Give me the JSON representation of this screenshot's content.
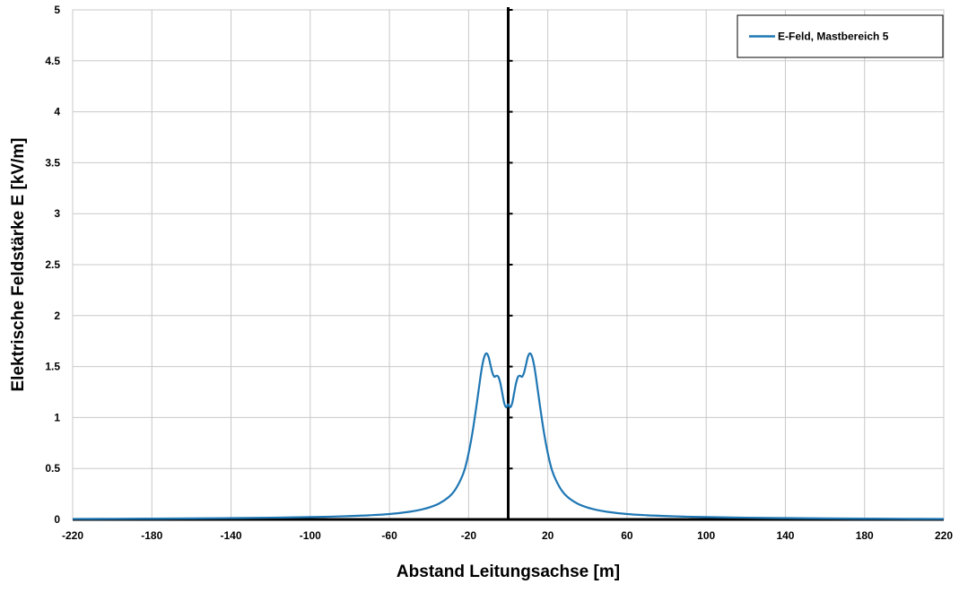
{
  "chart_data": {
    "type": "line",
    "title": "",
    "xlabel": "Abstand Leitungsachse [m]",
    "ylabel": "Elektrische Feldstärke E [kV/m]",
    "xlim": [
      -220,
      220
    ],
    "ylim": [
      0,
      5
    ],
    "xticks": [
      "-220",
      "-180",
      "-140",
      "-100",
      "-60",
      "-20",
      "20",
      "60",
      "100",
      "140",
      "180",
      "220"
    ],
    "yticks": [
      "0",
      "0.5",
      "1",
      "1.5",
      "2",
      "2.5",
      "3",
      "3.5",
      "4",
      "4.5",
      "5"
    ],
    "grid": true,
    "legend_position": "top-right",
    "colors": {
      "series": "#1f77b4",
      "grid": "#c8c8c8",
      "axis": "#000000"
    },
    "series": [
      {
        "name": "E-Feld, Mastbereich 5",
        "x": [
          -220,
          -200,
          -180,
          -160,
          -140,
          -120,
          -100,
          -90,
          -80,
          -70,
          -60,
          -50,
          -45,
          -40,
          -35,
          -30,
          -27,
          -24,
          -22,
          -20,
          -18,
          -16,
          -14,
          -13,
          -12,
          -11,
          -10,
          -9,
          -8,
          -7,
          -6,
          -5,
          -4,
          -3,
          -2,
          -1,
          0,
          1,
          2,
          3,
          4,
          5,
          6,
          7,
          8,
          9,
          10,
          11,
          12,
          13,
          14,
          16,
          18,
          20,
          22,
          24,
          27,
          30,
          35,
          40,
          45,
          50,
          60,
          70,
          80,
          90,
          100,
          120,
          140,
          160,
          180,
          200,
          220
        ],
        "y": [
          0.005,
          0.006,
          0.008,
          0.01,
          0.013,
          0.017,
          0.023,
          0.027,
          0.033,
          0.041,
          0.053,
          0.075,
          0.092,
          0.117,
          0.155,
          0.22,
          0.285,
          0.39,
          0.49,
          0.65,
          0.86,
          1.12,
          1.4,
          1.52,
          1.6,
          1.63,
          1.6,
          1.52,
          1.44,
          1.4,
          1.41,
          1.4,
          1.34,
          1.24,
          1.14,
          1.1,
          1.13,
          1.1,
          1.14,
          1.24,
          1.34,
          1.4,
          1.41,
          1.4,
          1.44,
          1.52,
          1.6,
          1.63,
          1.6,
          1.52,
          1.4,
          1.12,
          0.86,
          0.65,
          0.49,
          0.39,
          0.285,
          0.22,
          0.155,
          0.117,
          0.092,
          0.075,
          0.053,
          0.041,
          0.033,
          0.027,
          0.023,
          0.017,
          0.013,
          0.01,
          0.008,
          0.006,
          0.005
        ]
      }
    ]
  }
}
